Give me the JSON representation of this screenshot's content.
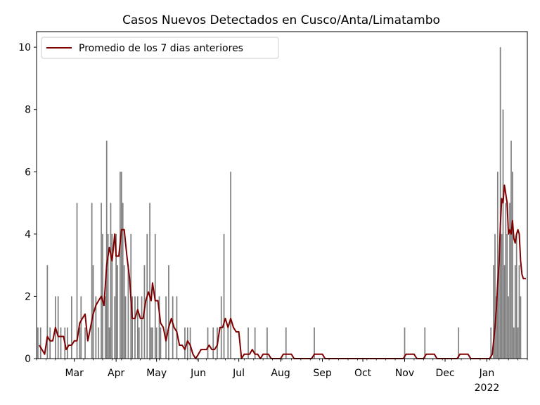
{
  "chart_data": {
    "type": "bar",
    "title": "Casos Nuevos Detectados en Cusco/Anta/Limatambo",
    "xlabel": "",
    "ylabel": "",
    "x_start": "2021-02-01",
    "x_end": "2022-01-31",
    "ylim": [
      0,
      10.5
    ],
    "y_ticks": [
      0,
      2,
      4,
      6,
      8,
      10
    ],
    "x_ticks": [
      {
        "date": "2021-03-01",
        "label": "Mar"
      },
      {
        "date": "2021-04-01",
        "label": "Apr"
      },
      {
        "date": "2021-05-01",
        "label": "May"
      },
      {
        "date": "2021-06-01",
        "label": "Jun"
      },
      {
        "date": "2021-07-01",
        "label": "Jul"
      },
      {
        "date": "2021-08-01",
        "label": "Aug"
      },
      {
        "date": "2021-09-01",
        "label": "Sep"
      },
      {
        "date": "2021-10-01",
        "label": "Oct"
      },
      {
        "date": "2021-11-01",
        "label": "Nov"
      },
      {
        "date": "2021-12-01",
        "label": "Dec"
      },
      {
        "date": "2022-01-01",
        "label": "Jan",
        "sublabel": "2022"
      }
    ],
    "series": [
      {
        "type": "bar",
        "color": "#808080",
        "points": [
          [
            "2021-02-02",
            1
          ],
          [
            "2021-02-04",
            1
          ],
          [
            "2021-02-09",
            3
          ],
          [
            "2021-02-11",
            1
          ],
          [
            "2021-02-15",
            2
          ],
          [
            "2021-02-17",
            2
          ],
          [
            "2021-02-19",
            1
          ],
          [
            "2021-02-22",
            1
          ],
          [
            "2021-02-24",
            1
          ],
          [
            "2021-02-27",
            2
          ],
          [
            "2021-03-03",
            5
          ],
          [
            "2021-03-05",
            1
          ],
          [
            "2021-03-06",
            2
          ],
          [
            "2021-03-09",
            1
          ],
          [
            "2021-03-14",
            5
          ],
          [
            "2021-03-15",
            3
          ],
          [
            "2021-03-17",
            2
          ],
          [
            "2021-03-19",
            1
          ],
          [
            "2021-03-21",
            5
          ],
          [
            "2021-03-22",
            4
          ],
          [
            "2021-03-24",
            2
          ],
          [
            "2021-03-25",
            7
          ],
          [
            "2021-03-26",
            4
          ],
          [
            "2021-03-27",
            1
          ],
          [
            "2021-03-28",
            5
          ],
          [
            "2021-03-29",
            4
          ],
          [
            "2021-03-31",
            2
          ],
          [
            "2021-04-01",
            4
          ],
          [
            "2021-04-02",
            3
          ],
          [
            "2021-04-04",
            6
          ],
          [
            "2021-04-05",
            6
          ],
          [
            "2021-04-06",
            5
          ],
          [
            "2021-04-07",
            3
          ],
          [
            "2021-04-08",
            2
          ],
          [
            "2021-04-10",
            3
          ],
          [
            "2021-04-12",
            4
          ],
          [
            "2021-04-13",
            2
          ],
          [
            "2021-04-15",
            2
          ],
          [
            "2021-04-17",
            2
          ],
          [
            "2021-04-18",
            1
          ],
          [
            "2021-04-20",
            2
          ],
          [
            "2021-04-22",
            3
          ],
          [
            "2021-04-24",
            4
          ],
          [
            "2021-04-26",
            5
          ],
          [
            "2021-04-27",
            1
          ],
          [
            "2021-04-28",
            1
          ],
          [
            "2021-04-30",
            4
          ],
          [
            "2021-05-01",
            1
          ],
          [
            "2021-05-03",
            2
          ],
          [
            "2021-05-04",
            1
          ],
          [
            "2021-05-08",
            2
          ],
          [
            "2021-05-10",
            3
          ],
          [
            "2021-05-13",
            2
          ],
          [
            "2021-05-16",
            2
          ],
          [
            "2021-05-22",
            1
          ],
          [
            "2021-05-24",
            1
          ],
          [
            "2021-05-26",
            1
          ],
          [
            "2021-06-08",
            1
          ],
          [
            "2021-06-12",
            1
          ],
          [
            "2021-06-15",
            1
          ],
          [
            "2021-06-18",
            2
          ],
          [
            "2021-06-20",
            4
          ],
          [
            "2021-06-23",
            1
          ],
          [
            "2021-06-25",
            6
          ],
          [
            "2021-07-08",
            1
          ],
          [
            "2021-07-13",
            1
          ],
          [
            "2021-07-22",
            1
          ],
          [
            "2021-08-05",
            1
          ],
          [
            "2021-08-26",
            1
          ],
          [
            "2021-11-01",
            1
          ],
          [
            "2021-11-16",
            1
          ],
          [
            "2021-12-11",
            1
          ],
          [
            "2022-01-04",
            1
          ],
          [
            "2022-01-06",
            3
          ],
          [
            "2022-01-07",
            4
          ],
          [
            "2022-01-08",
            2
          ],
          [
            "2022-01-09",
            6
          ],
          [
            "2022-01-10",
            3
          ],
          [
            "2022-01-11",
            10
          ],
          [
            "2022-01-12",
            4
          ],
          [
            "2022-01-13",
            8
          ],
          [
            "2022-01-14",
            3
          ],
          [
            "2022-01-15",
            5
          ],
          [
            "2022-01-16",
            4
          ],
          [
            "2022-01-17",
            2
          ],
          [
            "2022-01-18",
            5
          ],
          [
            "2022-01-19",
            7
          ],
          [
            "2022-01-20",
            6
          ],
          [
            "2022-01-21",
            1
          ],
          [
            "2022-01-22",
            3
          ],
          [
            "2022-01-23",
            4
          ],
          [
            "2022-01-24",
            1
          ],
          [
            "2022-01-25",
            3
          ],
          [
            "2022-01-26",
            2
          ]
        ]
      },
      {
        "type": "line",
        "name": "Promedio de los 7 dias anteriores",
        "color": "#800000",
        "points": [
          [
            "2021-02-03",
            0.43
          ],
          [
            "2021-02-05",
            0.29
          ],
          [
            "2021-02-07",
            0.14
          ],
          [
            "2021-02-09",
            0.71
          ],
          [
            "2021-02-11",
            0.57
          ],
          [
            "2021-02-13",
            0.57
          ],
          [
            "2021-02-15",
            1.0
          ],
          [
            "2021-02-17",
            0.71
          ],
          [
            "2021-02-19",
            0.71
          ],
          [
            "2021-02-21",
            0.71
          ],
          [
            "2021-02-23",
            0.29
          ],
          [
            "2021-02-25",
            0.43
          ],
          [
            "2021-02-27",
            0.43
          ],
          [
            "2021-03-01",
            0.57
          ],
          [
            "2021-03-03",
            0.57
          ],
          [
            "2021-03-05",
            1.14
          ],
          [
            "2021-03-07",
            1.29
          ],
          [
            "2021-03-09",
            1.43
          ],
          [
            "2021-03-11",
            0.57
          ],
          [
            "2021-03-13",
            1.0
          ],
          [
            "2021-03-15",
            1.43
          ],
          [
            "2021-03-17",
            1.71
          ],
          [
            "2021-03-19",
            1.86
          ],
          [
            "2021-03-21",
            2.0
          ],
          [
            "2021-03-23",
            1.71
          ],
          [
            "2021-03-25",
            3.0
          ],
          [
            "2021-03-27",
            3.57
          ],
          [
            "2021-03-29",
            3.14
          ],
          [
            "2021-03-31",
            4.0
          ],
          [
            "2021-04-01",
            3.29
          ],
          [
            "2021-04-03",
            3.29
          ],
          [
            "2021-04-05",
            4.14
          ],
          [
            "2021-04-07",
            4.14
          ],
          [
            "2021-04-09",
            3.29
          ],
          [
            "2021-04-11",
            2.57
          ],
          [
            "2021-04-13",
            1.29
          ],
          [
            "2021-04-15",
            1.29
          ],
          [
            "2021-04-17",
            1.57
          ],
          [
            "2021-04-19",
            1.29
          ],
          [
            "2021-04-21",
            1.29
          ],
          [
            "2021-04-23",
            1.86
          ],
          [
            "2021-04-25",
            2.14
          ],
          [
            "2021-04-27",
            1.86
          ],
          [
            "2021-04-28",
            2.43
          ],
          [
            "2021-04-30",
            1.86
          ],
          [
            "2021-05-02",
            1.86
          ],
          [
            "2021-05-04",
            1.14
          ],
          [
            "2021-05-06",
            1.0
          ],
          [
            "2021-05-08",
            0.57
          ],
          [
            "2021-05-10",
            1.0
          ],
          [
            "2021-05-12",
            1.29
          ],
          [
            "2021-05-14",
            1.0
          ],
          [
            "2021-05-16",
            0.86
          ],
          [
            "2021-05-18",
            0.43
          ],
          [
            "2021-05-20",
            0.43
          ],
          [
            "2021-05-22",
            0.29
          ],
          [
            "2021-05-24",
            0.57
          ],
          [
            "2021-05-26",
            0.43
          ],
          [
            "2021-05-28",
            0.14
          ],
          [
            "2021-05-30",
            0.0
          ],
          [
            "2021-06-01",
            0.14
          ],
          [
            "2021-06-03",
            0.29
          ],
          [
            "2021-06-05",
            0.29
          ],
          [
            "2021-06-07",
            0.29
          ],
          [
            "2021-06-09",
            0.43
          ],
          [
            "2021-06-11",
            0.29
          ],
          [
            "2021-06-13",
            0.29
          ],
          [
            "2021-06-15",
            0.43
          ],
          [
            "2021-06-17",
            1.0
          ],
          [
            "2021-06-19",
            1.0
          ],
          [
            "2021-06-21",
            1.29
          ],
          [
            "2021-06-23",
            1.0
          ],
          [
            "2021-06-25",
            1.29
          ],
          [
            "2021-06-27",
            1.0
          ],
          [
            "2021-06-29",
            0.86
          ],
          [
            "2021-07-01",
            0.86
          ],
          [
            "2021-07-03",
            0.0
          ],
          [
            "2021-07-05",
            0.14
          ],
          [
            "2021-07-07",
            0.14
          ],
          [
            "2021-07-09",
            0.14
          ],
          [
            "2021-07-11",
            0.29
          ],
          [
            "2021-07-13",
            0.14
          ],
          [
            "2021-07-15",
            0.14
          ],
          [
            "2021-07-17",
            0.0
          ],
          [
            "2021-07-19",
            0.14
          ],
          [
            "2021-07-23",
            0.14
          ],
          [
            "2021-07-25",
            0.0
          ],
          [
            "2021-07-29",
            0.0
          ],
          [
            "2021-08-01",
            0.0
          ],
          [
            "2021-08-03",
            0.14
          ],
          [
            "2021-08-09",
            0.14
          ],
          [
            "2021-08-11",
            0.0
          ],
          [
            "2021-08-24",
            0.0
          ],
          [
            "2021-08-26",
            0.14
          ],
          [
            "2021-09-01",
            0.14
          ],
          [
            "2021-09-03",
            0.0
          ],
          [
            "2021-10-31",
            0.0
          ],
          [
            "2021-11-02",
            0.14
          ],
          [
            "2021-11-08",
            0.14
          ],
          [
            "2021-11-10",
            0.0
          ],
          [
            "2021-11-15",
            0.0
          ],
          [
            "2021-11-17",
            0.14
          ],
          [
            "2021-11-23",
            0.14
          ],
          [
            "2021-11-25",
            0.0
          ],
          [
            "2021-12-10",
            0.0
          ],
          [
            "2021-12-12",
            0.14
          ],
          [
            "2021-12-18",
            0.14
          ],
          [
            "2021-12-20",
            0.0
          ],
          [
            "2022-01-03",
            0.0
          ],
          [
            "2022-01-05",
            0.14
          ],
          [
            "2022-01-07",
            1.0
          ],
          [
            "2022-01-08",
            1.57
          ],
          [
            "2022-01-09",
            2.43
          ],
          [
            "2022-01-10",
            3.0
          ],
          [
            "2022-01-11",
            4.29
          ],
          [
            "2022-01-12",
            5.14
          ],
          [
            "2022-01-13",
            5.0
          ],
          [
            "2022-01-14",
            5.57
          ],
          [
            "2022-01-15",
            5.29
          ],
          [
            "2022-01-16",
            5.0
          ],
          [
            "2022-01-17",
            4.0
          ],
          [
            "2022-01-18",
            4.14
          ],
          [
            "2022-01-19",
            4.0
          ],
          [
            "2022-01-20",
            4.43
          ],
          [
            "2022-01-21",
            3.86
          ],
          [
            "2022-01-22",
            3.71
          ],
          [
            "2022-01-23",
            4.0
          ],
          [
            "2022-01-24",
            4.14
          ],
          [
            "2022-01-25",
            4.0
          ],
          [
            "2022-01-26",
            3.14
          ],
          [
            "2022-01-27",
            2.71
          ],
          [
            "2022-01-28",
            2.57
          ],
          [
            "2022-01-30",
            2.57
          ]
        ]
      }
    ],
    "legend": {
      "position": "top-left"
    },
    "grid": false
  }
}
